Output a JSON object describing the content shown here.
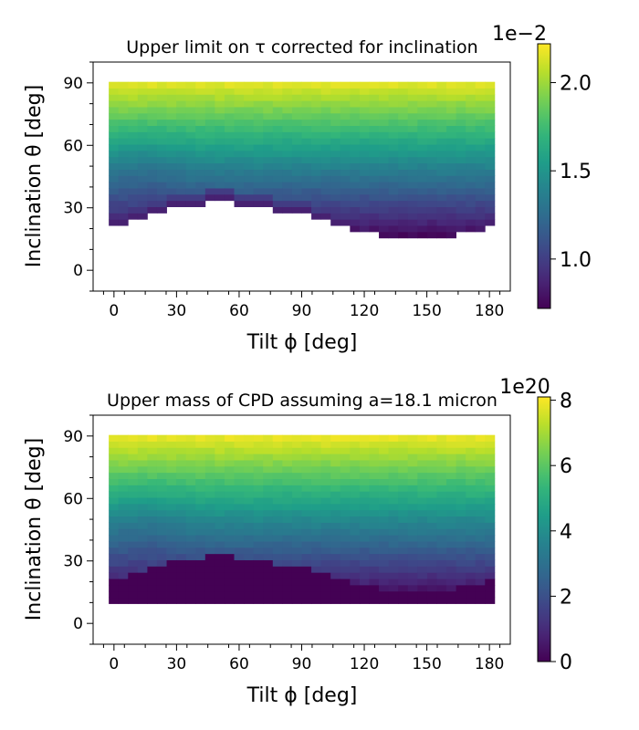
{
  "chart_data": [
    {
      "type": "heatmap",
      "title": "Upper limit on τ corrected for inclination",
      "xlabel": "Tilt ϕ [deg]",
      "ylabel": "Inclination θ [deg]",
      "xlim": [
        -10,
        190
      ],
      "ylim": [
        -10,
        100
      ],
      "xticks": [
        0,
        30,
        60,
        90,
        120,
        150,
        180
      ],
      "yticks": [
        0,
        30,
        60,
        90
      ],
      "x_range": [
        0,
        180
      ],
      "y_range": [
        9.5,
        90.5
      ],
      "boundary": {
        "x": [
          0,
          5,
          15,
          25,
          35,
          45,
          55,
          65,
          75,
          85,
          95,
          105,
          115,
          125,
          135,
          145,
          155,
          165,
          175,
          180
        ],
        "y_min": [
          23,
          25,
          28,
          31,
          33,
          35,
          35,
          33,
          32,
          30,
          28,
          25,
          22,
          20,
          17,
          17,
          17,
          20,
          22,
          23
        ]
      },
      "values_description": "values increase with inclination",
      "colorbar": {
        "label": "",
        "offset_text": "1e−2",
        "min": 0.0072,
        "max": 0.0222,
        "ticks": [
          1.0,
          1.5,
          2.0
        ],
        "tick_labels": [
          "1.0",
          "1.5",
          "2.0"
        ]
      }
    },
    {
      "type": "heatmap",
      "title": "Upper mass of CPD assuming a=18.1 micron",
      "xlabel": "Tilt ϕ [deg]",
      "ylabel": "Inclination θ [deg]",
      "xlim": [
        -10,
        190
      ],
      "ylim": [
        -10,
        100
      ],
      "xticks": [
        0,
        30,
        60,
        90,
        120,
        150,
        180
      ],
      "yticks": [
        0,
        30,
        60,
        90
      ],
      "x_range": [
        0,
        180
      ],
      "y_range": [
        9.5,
        90.5
      ],
      "zero_region": "below the occultation boundary the value is 0",
      "colorbar": {
        "label": "",
        "offset_text": "1e20",
        "min": 0,
        "max": 8.1,
        "ticks": [
          0,
          2,
          4,
          6,
          8
        ],
        "tick_labels": [
          "0",
          "2",
          "4",
          "6",
          "8"
        ]
      }
    }
  ],
  "colormap": "viridis",
  "colors": {
    "viridis": [
      "#440154",
      "#482878",
      "#3e4989",
      "#31688e",
      "#26828e",
      "#1f9e89",
      "#35b779",
      "#6ece58",
      "#b5de2b",
      "#fde725"
    ]
  }
}
